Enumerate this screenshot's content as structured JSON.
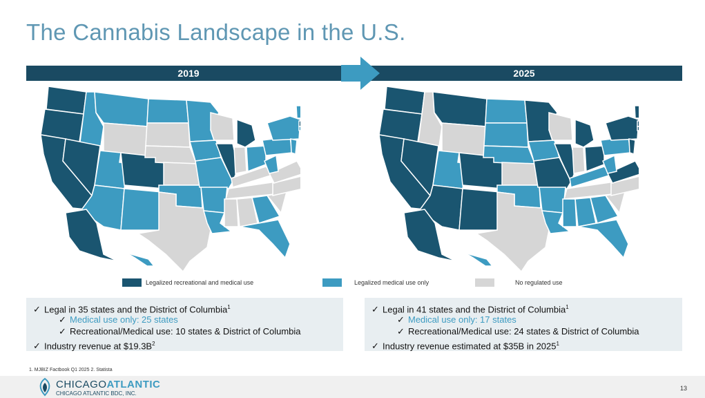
{
  "title": "The Cannabis Landscape in the U.S.",
  "colors": {
    "rec": "#1a5570",
    "med": "#3d9bc1",
    "none": "#d6d6d6",
    "bar": "#1a4a62"
  },
  "left": {
    "year": "2019",
    "line1": "Legal in 35 states and the District of Columbia",
    "line1_sup": "1",
    "line2": "Medical use only: 25 states",
    "line3": "Recreational/Medical use: 10 states & District of Columbia",
    "line4": "Industry revenue at $19.3B",
    "line4_sup": "2"
  },
  "right": {
    "year": "2025",
    "line1": "Legal in 41 states and the District of Columbia",
    "line1_sup": "1",
    "line2": "Medical use only: 17 states",
    "line3": "Recreational/Medical use: 24 states & District of Columbia",
    "line4": "Industry revenue estimated at $35B in 2025",
    "line4_sup": "1"
  },
  "legend": {
    "rec": "Legalized recreational and medical use",
    "med": "Legalized medical use only",
    "none": "No regulated use"
  },
  "check": "✓",
  "footnote": "1. MJBIZ Factbook Q1 2025 2. Statista",
  "logo": {
    "part1": "CHICAGO",
    "part2": "ATLANTIC",
    "sub": "CHICAGO ATLANTIC BDC, INC."
  },
  "page": "13"
}
